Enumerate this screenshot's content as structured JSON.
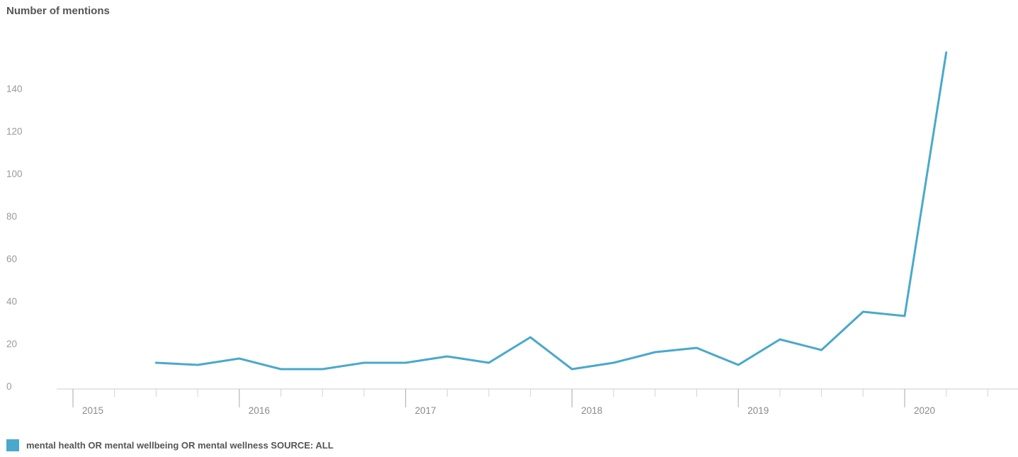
{
  "chart_data": {
    "type": "line",
    "title": "Number of mentions",
    "xlabel": "",
    "ylabel": "Number of mentions",
    "x_tick_labels": [
      "2015",
      "2016",
      "2017",
      "2018",
      "2019",
      "2020"
    ],
    "y_ticks": [
      0,
      20,
      40,
      60,
      80,
      100,
      120,
      140
    ],
    "ylim": [
      0,
      160
    ],
    "xlim": [
      2015.0,
      2020.5
    ],
    "grid": false,
    "legend_position": "bottom-left",
    "series": [
      {
        "name": "mental health OR mental wellbeing OR mental wellness SOURCE: ALL",
        "color": "#4aa8cc",
        "x": [
          2015.5,
          2015.75,
          2016.0,
          2016.25,
          2016.5,
          2016.75,
          2017.0,
          2017.25,
          2017.5,
          2017.75,
          2018.0,
          2018.25,
          2018.5,
          2018.75,
          2019.0,
          2019.25,
          2019.5,
          2019.75,
          2020.0,
          2020.25
        ],
        "values": [
          11,
          10,
          13,
          8,
          8,
          11,
          11,
          14,
          11,
          23,
          8,
          11,
          16,
          18,
          10,
          22,
          17,
          35,
          33,
          157
        ]
      }
    ]
  }
}
